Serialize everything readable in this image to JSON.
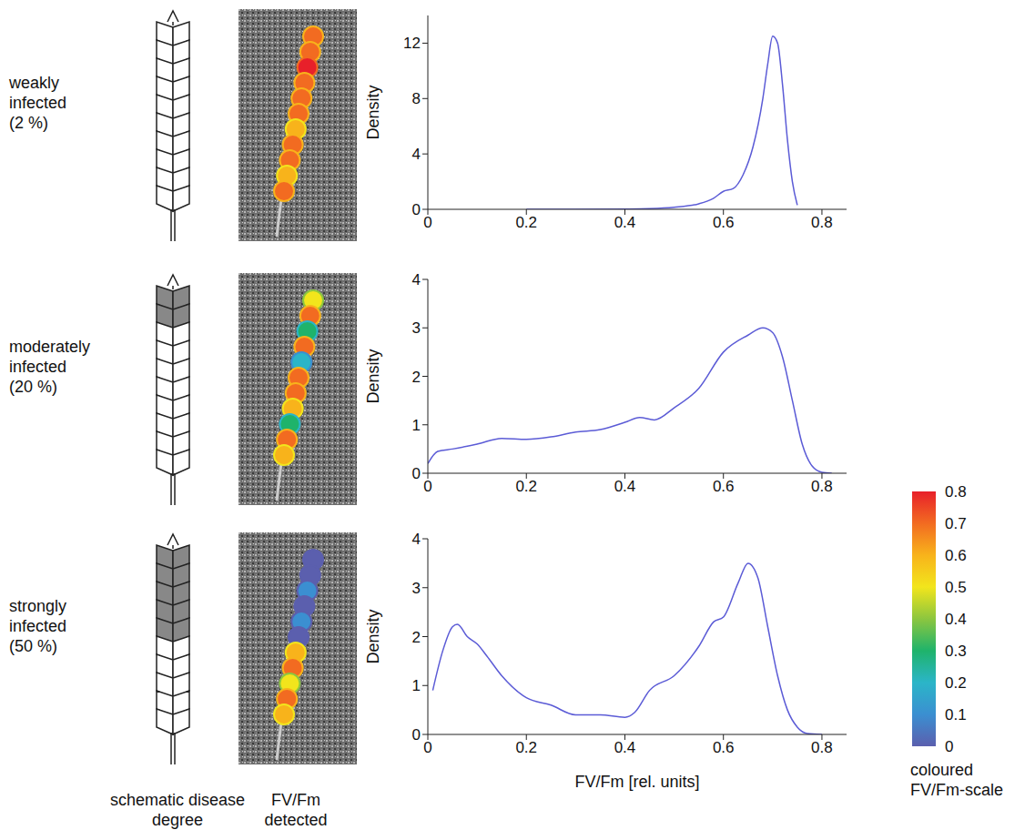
{
  "rows": [
    {
      "label": "weakly infected",
      "degree": {
        "value": 2,
        "label": "(2 %)"
      }
    },
    {
      "label": "moderately infected",
      "degree": {
        "value": 20,
        "label": "(20 %)"
      }
    },
    {
      "label": "strongly infected",
      "degree": {
        "value": 50,
        "label": "(50 %)"
      }
    }
  ],
  "column_labels": [
    "schematic disease degree",
    "FV/Fm detected"
  ],
  "colorbar": {
    "label": "coloured FV/Fm-scale",
    "range": [
      0,
      0.8
    ],
    "ticks": [
      0,
      0.1,
      0.2,
      0.3,
      0.4,
      0.5,
      0.6,
      0.7,
      0.8
    ],
    "colors": [
      "#5b5fae",
      "#3b8fd1",
      "#2bb5c8",
      "#1fb36b",
      "#8cc63f",
      "#f2e51c",
      "#f8b31b",
      "#f26b21",
      "#e8202a"
    ]
  },
  "chart_data": [
    {
      "type": "line",
      "y_label": "Density",
      "color": "#5b5bd6",
      "x": [
        0.2,
        0.3,
        0.4,
        0.45,
        0.5,
        0.55,
        0.58,
        0.6,
        0.62,
        0.64,
        0.66,
        0.68,
        0.69,
        0.7,
        0.71,
        0.72,
        0.73,
        0.74,
        0.75
      ],
      "values": [
        0,
        0,
        0.02,
        0.05,
        0.15,
        0.4,
        0.8,
        1.3,
        1.5,
        2.5,
        4.5,
        8,
        10.5,
        12.5,
        12,
        9,
        5,
        2,
        0.3
      ],
      "xlim": [
        0,
        0.85
      ],
      "xticks": [
        0,
        0.2,
        0.4,
        0.6,
        0.8
      ],
      "ylim": [
        0,
        14
      ],
      "yticks": [
        0,
        4,
        8,
        12
      ]
    },
    {
      "type": "line",
      "y_label": "Density",
      "color": "#5b5bd6",
      "x": [
        0,
        0.02,
        0.05,
        0.1,
        0.15,
        0.2,
        0.25,
        0.3,
        0.35,
        0.4,
        0.43,
        0.46,
        0.5,
        0.55,
        0.6,
        0.65,
        0.68,
        0.7,
        0.72,
        0.74,
        0.76,
        0.78,
        0.8,
        0.82
      ],
      "values": [
        0.2,
        0.45,
        0.5,
        0.6,
        0.72,
        0.7,
        0.75,
        0.85,
        0.9,
        1.05,
        1.15,
        1.1,
        1.35,
        1.75,
        2.5,
        2.85,
        3.0,
        2.9,
        2.4,
        1.5,
        0.6,
        0.15,
        0.02,
        0
      ],
      "xlim": [
        0,
        0.85
      ],
      "xticks": [
        0,
        0.2,
        0.4,
        0.6,
        0.8
      ],
      "ylim": [
        0,
        4
      ],
      "yticks": [
        0,
        1,
        2,
        3,
        4
      ]
    },
    {
      "type": "line",
      "y_label": "Density",
      "x_label": "FV/Fm [rel. units]",
      "color": "#5b5bd6",
      "x": [
        0.01,
        0.03,
        0.05,
        0.06,
        0.08,
        0.1,
        0.12,
        0.15,
        0.2,
        0.25,
        0.3,
        0.35,
        0.4,
        0.42,
        0.45,
        0.5,
        0.55,
        0.58,
        0.6,
        0.63,
        0.65,
        0.67,
        0.69,
        0.71,
        0.73,
        0.75,
        0.77,
        0.8
      ],
      "values": [
        0.9,
        1.7,
        2.2,
        2.25,
        2.0,
        1.85,
        1.6,
        1.2,
        0.75,
        0.6,
        0.4,
        0.4,
        0.35,
        0.45,
        0.9,
        1.2,
        1.8,
        2.3,
        2.4,
        3.1,
        3.5,
        3.2,
        2.2,
        1.2,
        0.5,
        0.15,
        0.02,
        0
      ],
      "xlim": [
        0,
        0.85
      ],
      "xticks": [
        0,
        0.2,
        0.4,
        0.6,
        0.8
      ],
      "ylim": [
        0,
        4
      ],
      "yticks": [
        0,
        1,
        2,
        3,
        4
      ]
    }
  ]
}
